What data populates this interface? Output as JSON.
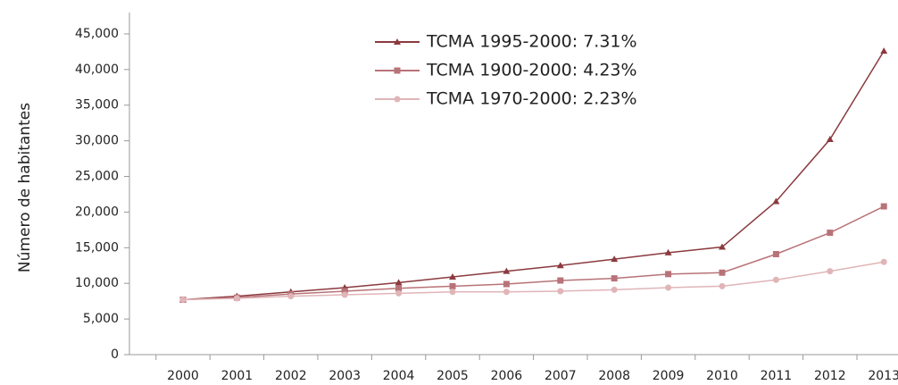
{
  "chart_data": {
    "type": "line",
    "y_label": "Número de habitantes",
    "categories": [
      "2000",
      "2001",
      "2002",
      "2003",
      "2004",
      "2005",
      "2006",
      "2007",
      "2008",
      "2009",
      "2010",
      "2011",
      "2012",
      "2013"
    ],
    "series": [
      {
        "name": "TCMA 1995-2000: 7.31%",
        "color": "#8b3a3f",
        "marker": "triangle",
        "values": [
          7700,
          8200,
          8800,
          9400,
          10100,
          10900,
          11700,
          12500,
          13400,
          14300,
          15100,
          21500,
          30200,
          42600
        ]
      },
      {
        "name": "TCMA 1900-2000: 4.23%",
        "color": "#b87378",
        "marker": "square",
        "values": [
          7700,
          8000,
          8500,
          8900,
          9300,
          9600,
          9900,
          10400,
          10700,
          11300,
          11500,
          14100,
          17100,
          20800
        ]
      },
      {
        "name": "TCMA 1970-2000: 2.23%",
        "color": "#e0b5b8",
        "marker": "circle",
        "values": [
          7700,
          7900,
          8200,
          8400,
          8600,
          8800,
          8800,
          8900,
          9100,
          9400,
          9600,
          10500,
          11700,
          13000
        ]
      }
    ],
    "ylim": [
      0,
      48000
    ],
    "yticks": [
      0,
      {
        "value": 5000,
        "label": "5,000"
      },
      {
        "value": 10000,
        "label": "10,000"
      },
      {
        "value": 15000,
        "label": "15,000"
      },
      {
        "value": 20000,
        "label": "20,000"
      },
      {
        "value": 25000,
        "label": "25,000"
      },
      {
        "value": 30000,
        "label": "30,000"
      },
      {
        "value": 35000,
        "label": "35,000"
      },
      {
        "value": 40000,
        "label": "40,000"
      },
      {
        "value": 45000,
        "label": "45,000"
      }
    ],
    "grid": false,
    "legend": "top"
  }
}
